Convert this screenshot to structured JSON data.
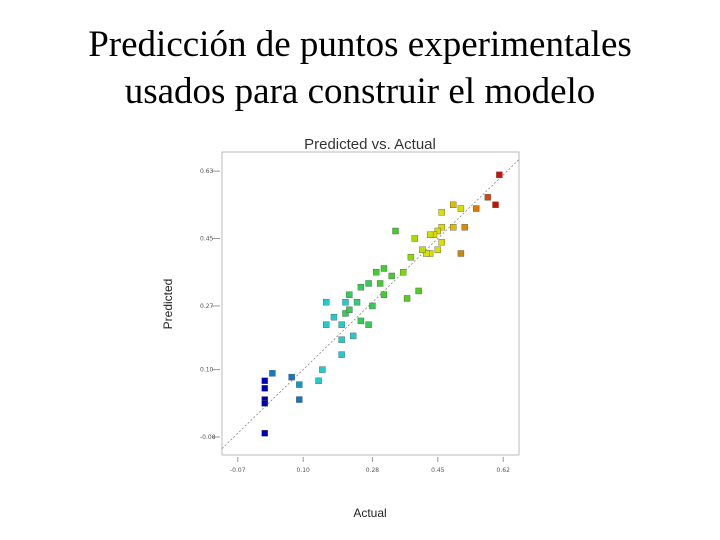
{
  "slide": {
    "title_lines": [
      "Predicción de puntos experimentales",
      "usados para construir el modelo"
    ]
  },
  "chart_data": {
    "type": "scatter",
    "title": "Predicted vs. Actual",
    "xlabel": "Actual",
    "ylabel": "Predicted",
    "x": [
      0.61,
      0.6,
      0.58,
      0.55,
      0.52,
      0.51,
      0.49,
      0.49,
      0.51,
      0.46,
      0.46,
      0.45,
      0.44,
      0.46,
      0.45,
      0.43,
      0.42,
      0.43,
      0.41,
      0.39,
      0.38,
      0.36,
      0.34,
      0.4,
      0.37,
      0.33,
      0.31,
      0.31,
      0.29,
      0.3,
      0.27,
      0.28,
      0.25,
      0.22,
      0.21,
      0.24,
      0.22,
      0.27,
      0.25,
      0.21,
      0.2,
      0.18,
      0.23,
      0.2,
      0.2,
      0.16,
      0.15,
      0.16,
      0.14,
      0.09,
      0.09,
      0.07,
      0.02,
      0.0,
      0.0,
      0.0,
      0.0,
      0.0
    ],
    "values": [
      0.62,
      0.54,
      0.56,
      0.53,
      0.48,
      0.41,
      0.48,
      0.54,
      0.53,
      0.52,
      0.48,
      0.47,
      0.46,
      0.44,
      0.42,
      0.41,
      0.41,
      0.46,
      0.42,
      0.45,
      0.4,
      0.36,
      0.47,
      0.31,
      0.29,
      0.35,
      0.3,
      0.37,
      0.36,
      0.33,
      0.33,
      0.27,
      0.32,
      0.3,
      0.25,
      0.28,
      0.26,
      0.22,
      0.23,
      0.28,
      0.22,
      0.24,
      0.19,
      0.18,
      0.14,
      0.22,
      0.1,
      0.28,
      0.07,
      0.06,
      0.02,
      0.08,
      0.09,
      0.07,
      0.05,
      0.02,
      0.01,
      -0.07
    ],
    "colors": [
      "#cc1100",
      "#cc1100",
      "#dd4400",
      "#dd7700",
      "#dd8800",
      "#cc8800",
      "#ddbb00",
      "#ddbb00",
      "#dddd00",
      "#dddd00",
      "#dddd00",
      "#dddd00",
      "#dddd00",
      "#dddd00",
      "#dddd00",
      "#dddd00",
      "#dddd00",
      "#ccdd00",
      "#bbdd00",
      "#aadd00",
      "#88dd00",
      "#77dd00",
      "#44cc22",
      "#55cc22",
      "#55cc22",
      "#44cc33",
      "#44cc33",
      "#44cc33",
      "#44cc33",
      "#44cc33",
      "#33cc55",
      "#33cc55",
      "#33cc55",
      "#33cc55",
      "#33cc55",
      "#33cc77",
      "#33cc55",
      "#33cc55",
      "#33cc55",
      "#22cccc",
      "#22cccc",
      "#22cccc",
      "#22cccc",
      "#22cccc",
      "#22cccc",
      "#22cccc",
      "#22cccc",
      "#22cccc",
      "#22cccc",
      "#1199cc",
      "#1177cc",
      "#1177cc",
      "#1177cc",
      "#0000bb",
      "#0000bb",
      "#0000bb",
      "#0000bb",
      "#0000bb"
    ],
    "xlim": [
      -0.111,
      0.661
    ],
    "ylim": [
      -0.128,
      0.681
    ],
    "xticks": [
      -0.07,
      {
        "value": 0.1,
        "label": "0.10"
      },
      0.28,
      0.45,
      0.62
    ],
    "yticks": [
      -0.08,
      {
        "value": 0.1,
        "label": "0.10"
      },
      0.27,
      0.45,
      0.63
    ]
  }
}
